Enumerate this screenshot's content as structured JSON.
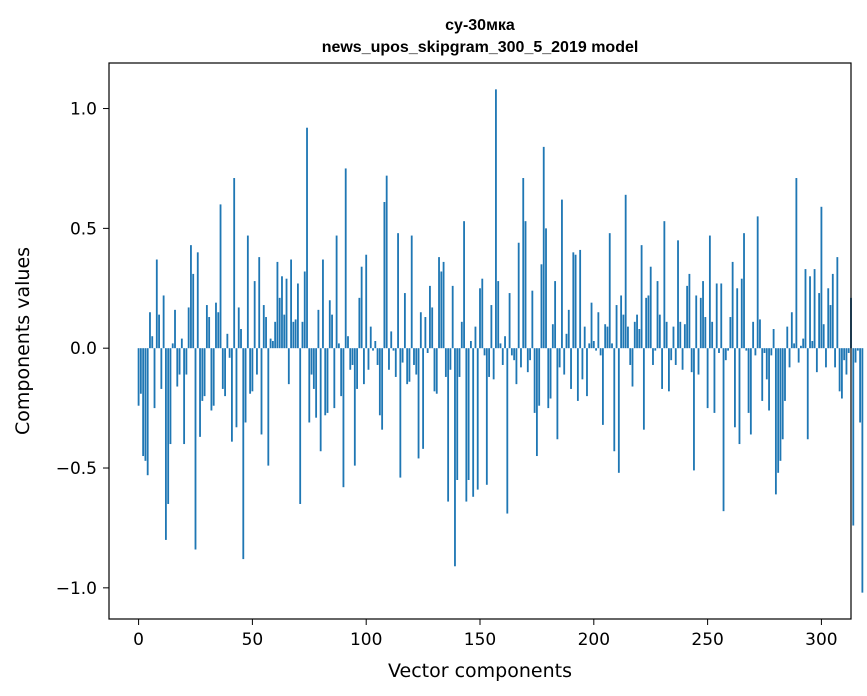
{
  "chart_data": {
    "type": "bar",
    "title_line1": "су-30мка",
    "title_line2": "news_upos_skipgram_300_5_2019 model",
    "xlabel": "Vector components",
    "ylabel": "Components values",
    "xlim": [
      -13,
      313
    ],
    "ylim": [
      -1.13,
      1.19
    ],
    "xticks": [
      0,
      50,
      100,
      150,
      200,
      250,
      300
    ],
    "xtick_labels": [
      "0",
      "50",
      "100",
      "150",
      "200",
      "250",
      "300"
    ],
    "yticks": [
      -1.0,
      -0.5,
      0.0,
      0.5,
      1.0
    ],
    "ytick_labels": [
      "−1.0",
      "−0.5",
      "0.0",
      "0.5",
      "1.0"
    ],
    "bar_color": "#1f77b4",
    "values": [
      -0.24,
      -0.19,
      -0.45,
      -0.47,
      -0.53,
      0.15,
      0.05,
      -0.25,
      0.37,
      0.14,
      -0.17,
      0.22,
      -0.8,
      -0.65,
      -0.4,
      0.02,
      0.16,
      -0.16,
      -0.11,
      0.04,
      -0.4,
      -0.11,
      0.17,
      0.43,
      0.31,
      -0.84,
      0.4,
      -0.37,
      -0.22,
      -0.2,
      0.18,
      0.13,
      -0.26,
      -0.24,
      0.19,
      0.15,
      0.6,
      -0.17,
      -0.2,
      0.06,
      -0.04,
      -0.39,
      0.71,
      -0.33,
      0.17,
      0.08,
      -0.88,
      -0.31,
      0.47,
      -0.19,
      -0.18,
      0.28,
      -0.11,
      0.38,
      -0.36,
      0.18,
      0.13,
      -0.49,
      0.04,
      0.03,
      0.11,
      0.36,
      0.21,
      0.3,
      0.14,
      0.29,
      -0.15,
      0.37,
      0.11,
      0.12,
      0.27,
      -0.65,
      0.11,
      0.32,
      0.92,
      -0.31,
      -0.11,
      -0.17,
      -0.29,
      0.16,
      -0.43,
      0.37,
      -0.28,
      -0.27,
      0.2,
      0.14,
      -0.25,
      0.47,
      0.02,
      -0.2,
      -0.58,
      0.75,
      0.05,
      -0.09,
      -0.07,
      -0.49,
      -0.17,
      0.21,
      0.34,
      -0.15,
      0.39,
      -0.09,
      0.09,
      -0.01,
      0.03,
      -0.07,
      -0.28,
      -0.34,
      0.61,
      0.72,
      -0.09,
      0.07,
      -0.01,
      -0.12,
      0.48,
      -0.54,
      -0.06,
      0.23,
      -0.15,
      -0.14,
      0.47,
      -0.07,
      -0.11,
      -0.46,
      0.15,
      -0.42,
      0.13,
      -0.02,
      0.26,
      0.17,
      -0.18,
      -0.19,
      0.38,
      0.32,
      0.36,
      -0.12,
      -0.64,
      -0.09,
      0.26,
      -0.91,
      -0.55,
      -0.12,
      0.11,
      0.53,
      -0.64,
      -0.55,
      0.03,
      -0.62,
      0.09,
      -0.59,
      0.25,
      0.29,
      -0.03,
      -0.57,
      -0.12,
      0.18,
      -0.13,
      1.08,
      0.28,
      0.02,
      -0.07,
      0.05,
      -0.69,
      0.23,
      -0.03,
      -0.05,
      -0.15,
      0.44,
      -0.08,
      0.71,
      0.53,
      -0.1,
      -0.05,
      0.24,
      -0.27,
      -0.45,
      -0.24,
      0.35,
      0.84,
      0.5,
      -0.25,
      -0.21,
      0.1,
      0.28,
      -0.38,
      -0.08,
      0.62,
      -0.11,
      0.06,
      0.16,
      -0.17,
      0.4,
      0.39,
      -0.22,
      0.41,
      -0.13,
      0.09,
      -0.2,
      0.02,
      0.19,
      0.03,
      -0.01,
      0.15,
      -0.03,
      -0.32,
      0.1,
      0.09,
      0.48,
      0.02,
      -0.43,
      0.18,
      -0.52,
      0.22,
      0.14,
      0.64,
      0.09,
      -0.07,
      -0.16,
      0.11,
      0.14,
      0.08,
      0.43,
      -0.34,
      0.21,
      0.22,
      0.34,
      -0.07,
      -0.01,
      0.28,
      0.14,
      -0.17,
      0.53,
      0.11,
      -0.18,
      -0.05,
      0.09,
      -0.07,
      0.45,
      0.11,
      -0.09,
      0.1,
      0.26,
      0.31,
      -0.1,
      -0.51,
      0.22,
      -0.11,
      0.21,
      0.28,
      0.13,
      -0.25,
      0.47,
      0.11,
      -0.27,
      0.27,
      -0.02,
      0.27,
      -0.68,
      -0.05,
      -0.01,
      0.13,
      0.36,
      -0.33,
      0.25,
      -0.4,
      0.29,
      0.48,
      -0.01,
      -0.27,
      -0.36,
      0.11,
      -0.03,
      0.55,
      0.12,
      -0.22,
      -0.02,
      -0.13,
      -0.26,
      -0.03,
      0.08,
      -0.61,
      -0.52,
      -0.47,
      -0.38,
      -0.22,
      0.09,
      -0.08,
      0.15,
      0.02,
      0.71,
      -0.06,
      0.01,
      0.04,
      0.33,
      -0.38,
      0.3,
      0.03,
      0.33,
      -0.1,
      0.23,
      0.59,
      0.1,
      -0.08,
      0.25,
      0.18,
      0.31,
      -0.08,
      0.38,
      -0.18,
      -0.21,
      -0.05,
      -0.11,
      -0.02,
      0.21,
      -0.74,
      -0.06,
      -0.01,
      -0.31,
      -1.02
    ]
  }
}
